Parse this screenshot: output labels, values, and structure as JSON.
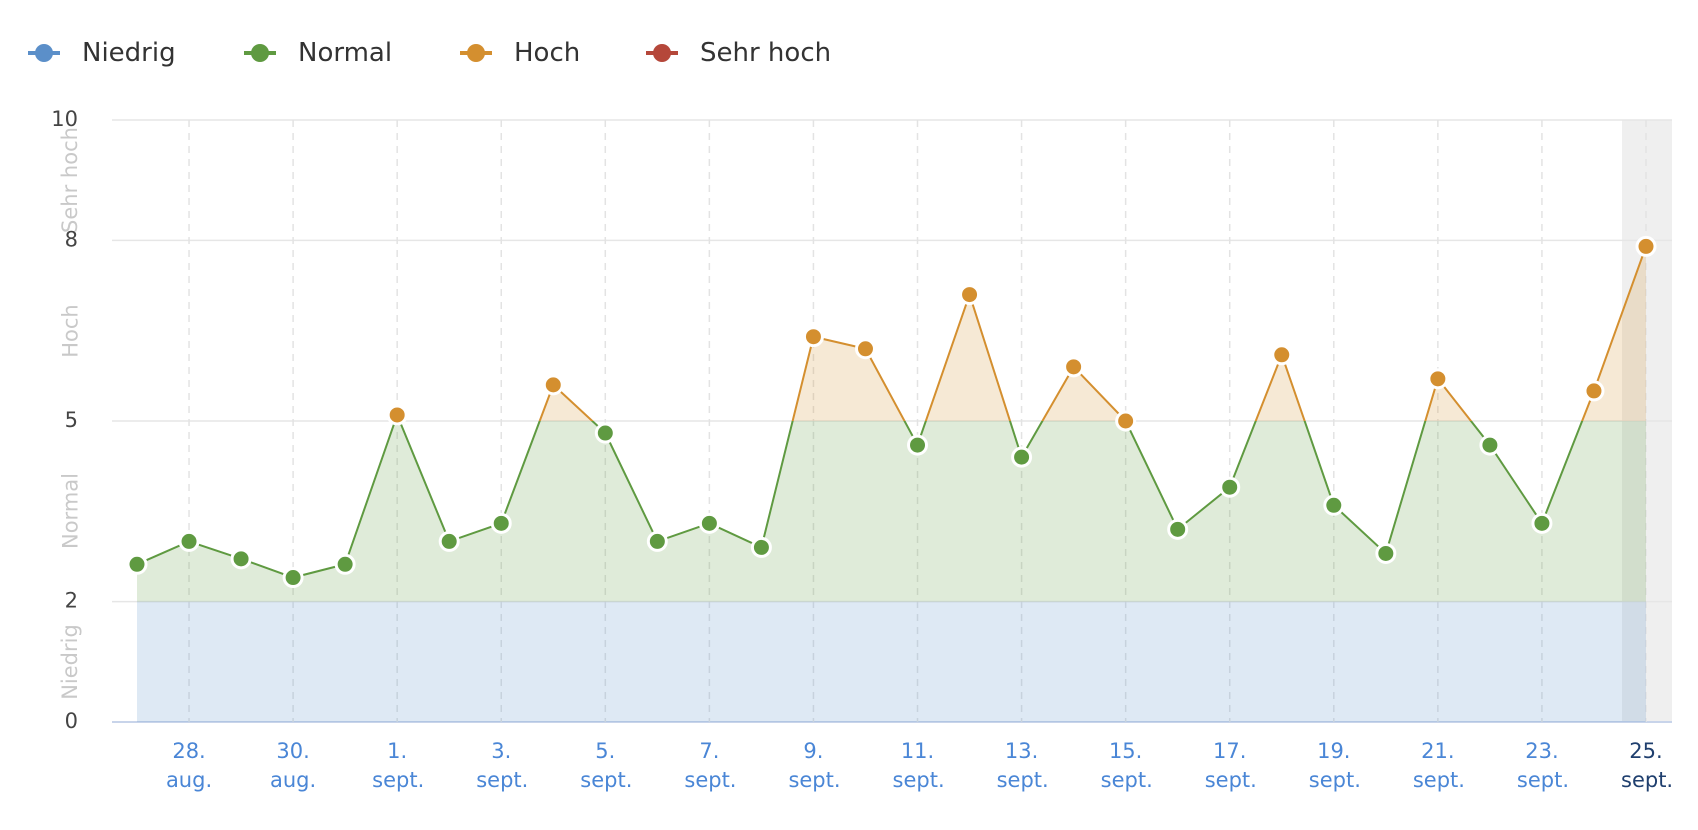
{
  "chart_data": {
    "type": "line",
    "categories": [
      null,
      "28. aug.",
      null,
      "30. aug.",
      null,
      "1. sept.",
      null,
      "3. sept.",
      null,
      "5. sept.",
      null,
      "7. sept.",
      null,
      "9. sept.",
      null,
      "11. sept.",
      null,
      "13. sept.",
      null,
      "15. sept.",
      null,
      "17. sept.",
      null,
      "19. sept.",
      null,
      "21. sept.",
      null,
      "23. sept.",
      null,
      "25. sept."
    ],
    "values": [
      2.62,
      3.0,
      2.71,
      2.4,
      2.62,
      5.1,
      3.0,
      3.3,
      5.6,
      4.8,
      3.0,
      3.3,
      2.9,
      6.4,
      6.2,
      4.6,
      7.1,
      4.4,
      5.9,
      5.0,
      3.2,
      3.9,
      6.1,
      3.6,
      2.8,
      5.7,
      4.6,
      3.3,
      5.5,
      7.9
    ],
    "bands": [
      {
        "name": "Niedrig",
        "color": "#5b8fc9",
        "from": 0,
        "to": 2
      },
      {
        "name": "Normal",
        "color": "#5f9a41",
        "from": 2,
        "to": 5
      },
      {
        "name": "Hoch",
        "color": "#d48f2f",
        "from": 5,
        "to": 8
      },
      {
        "name": "Sehr hoch",
        "color": "#b5473a",
        "from": 8,
        "to": 10
      }
    ],
    "ylim": [
      0,
      10
    ],
    "yticks": [
      0,
      2,
      5,
      8,
      10
    ],
    "grid": true
  }
}
